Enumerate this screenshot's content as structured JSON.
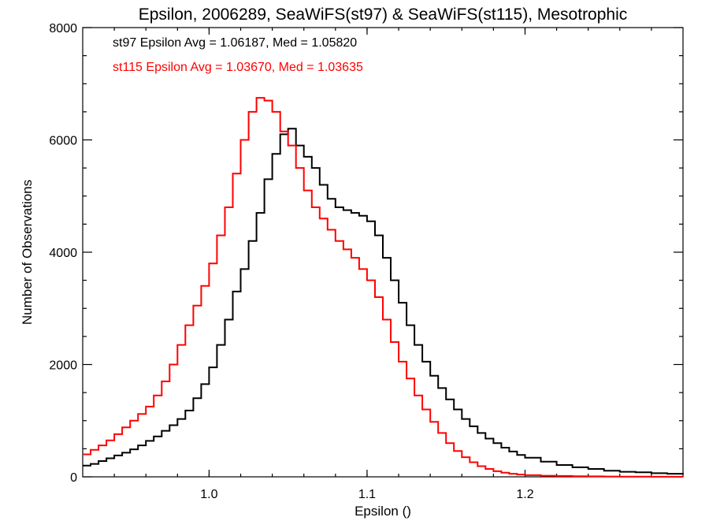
{
  "chart_data": {
    "type": "line",
    "title": "Epsilon, 2006289, SeaWiFS(st97) & SeaWiFS(st115), Mesotrophic",
    "xlabel": "Epsilon ()",
    "ylabel": "Number of Observations",
    "xlim": [
      0.92,
      1.3
    ],
    "ylim": [
      0,
      8000
    ],
    "grid": false,
    "x_ticks": [
      {
        "value": 1.0,
        "label": "1.0"
      },
      {
        "value": 1.1,
        "label": "1.1"
      },
      {
        "value": 1.2,
        "label": "1.2"
      }
    ],
    "y_ticks": [
      {
        "value": 0,
        "label": "0"
      },
      {
        "value": 2000,
        "label": "2000"
      },
      {
        "value": 4000,
        "label": "4000"
      },
      {
        "value": 6000,
        "label": "6000"
      },
      {
        "value": 8000,
        "label": "8000"
      }
    ],
    "annotations": [
      {
        "text": "st97 Epsilon Avg = 1.06187, Med = 1.05820",
        "color": "#000000"
      },
      {
        "text": "st115 Epsilon Avg = 1.03670, Med = 1.03635",
        "color": "#ff0000"
      }
    ],
    "series": [
      {
        "color": "#000000",
        "step": true,
        "points": [
          [
            0.92,
            200
          ],
          [
            0.925,
            230
          ],
          [
            0.93,
            280
          ],
          [
            0.935,
            330
          ],
          [
            0.94,
            380
          ],
          [
            0.945,
            430
          ],
          [
            0.95,
            490
          ],
          [
            0.955,
            560
          ],
          [
            0.96,
            640
          ],
          [
            0.965,
            720
          ],
          [
            0.97,
            820
          ],
          [
            0.975,
            920
          ],
          [
            0.98,
            1030
          ],
          [
            0.985,
            1180
          ],
          [
            0.99,
            1400
          ],
          [
            0.995,
            1650
          ],
          [
            1.0,
            1950
          ],
          [
            1.005,
            2350
          ],
          [
            1.01,
            2800
          ],
          [
            1.015,
            3300
          ],
          [
            1.02,
            3700
          ],
          [
            1.025,
            4200
          ],
          [
            1.03,
            4700
          ],
          [
            1.035,
            5300
          ],
          [
            1.04,
            5750
          ],
          [
            1.045,
            6100
          ],
          [
            1.05,
            6200
          ],
          [
            1.055,
            5900
          ],
          [
            1.06,
            5700
          ],
          [
            1.065,
            5500
          ],
          [
            1.07,
            5200
          ],
          [
            1.075,
            4950
          ],
          [
            1.08,
            4800
          ],
          [
            1.085,
            4750
          ],
          [
            1.09,
            4700
          ],
          [
            1.095,
            4650
          ],
          [
            1.1,
            4550
          ],
          [
            1.105,
            4300
          ],
          [
            1.11,
            3900
          ],
          [
            1.115,
            3500
          ],
          [
            1.12,
            3100
          ],
          [
            1.125,
            2700
          ],
          [
            1.13,
            2350
          ],
          [
            1.135,
            2050
          ],
          [
            1.14,
            1800
          ],
          [
            1.145,
            1580
          ],
          [
            1.15,
            1380
          ],
          [
            1.155,
            1200
          ],
          [
            1.16,
            1030
          ],
          [
            1.165,
            900
          ],
          [
            1.17,
            780
          ],
          [
            1.175,
            680
          ],
          [
            1.18,
            600
          ],
          [
            1.185,
            520
          ],
          [
            1.19,
            450
          ],
          [
            1.195,
            390
          ],
          [
            1.2,
            340
          ],
          [
            1.21,
            270
          ],
          [
            1.22,
            210
          ],
          [
            1.23,
            170
          ],
          [
            1.24,
            140
          ],
          [
            1.25,
            110
          ],
          [
            1.26,
            90
          ],
          [
            1.27,
            80
          ],
          [
            1.28,
            65
          ],
          [
            1.29,
            55
          ],
          [
            1.3,
            45
          ]
        ]
      },
      {
        "color": "#ff0000",
        "step": true,
        "points": [
          [
            0.92,
            400
          ],
          [
            0.925,
            480
          ],
          [
            0.93,
            560
          ],
          [
            0.935,
            650
          ],
          [
            0.94,
            760
          ],
          [
            0.945,
            880
          ],
          [
            0.95,
            1000
          ],
          [
            0.955,
            1120
          ],
          [
            0.96,
            1250
          ],
          [
            0.965,
            1450
          ],
          [
            0.97,
            1700
          ],
          [
            0.975,
            2000
          ],
          [
            0.98,
            2350
          ],
          [
            0.985,
            2700
          ],
          [
            0.99,
            3050
          ],
          [
            0.995,
            3400
          ],
          [
            1.0,
            3800
          ],
          [
            1.005,
            4300
          ],
          [
            1.01,
            4800
          ],
          [
            1.015,
            5400
          ],
          [
            1.02,
            6000
          ],
          [
            1.025,
            6500
          ],
          [
            1.03,
            6750
          ],
          [
            1.035,
            6700
          ],
          [
            1.04,
            6500
          ],
          [
            1.045,
            6150
          ],
          [
            1.05,
            5900
          ],
          [
            1.055,
            5500
          ],
          [
            1.06,
            5100
          ],
          [
            1.065,
            4800
          ],
          [
            1.07,
            4600
          ],
          [
            1.075,
            4400
          ],
          [
            1.08,
            4200
          ],
          [
            1.085,
            4050
          ],
          [
            1.09,
            3900
          ],
          [
            1.095,
            3700
          ],
          [
            1.1,
            3500
          ],
          [
            1.105,
            3200
          ],
          [
            1.11,
            2800
          ],
          [
            1.115,
            2400
          ],
          [
            1.12,
            2050
          ],
          [
            1.125,
            1750
          ],
          [
            1.13,
            1450
          ],
          [
            1.135,
            1200
          ],
          [
            1.14,
            980
          ],
          [
            1.145,
            780
          ],
          [
            1.15,
            600
          ],
          [
            1.155,
            460
          ],
          [
            1.16,
            350
          ],
          [
            1.165,
            260
          ],
          [
            1.17,
            190
          ],
          [
            1.175,
            140
          ],
          [
            1.18,
            100
          ],
          [
            1.185,
            75
          ],
          [
            1.19,
            55
          ],
          [
            1.195,
            40
          ],
          [
            1.2,
            30
          ],
          [
            1.21,
            20
          ],
          [
            1.22,
            15
          ],
          [
            1.23,
            10
          ],
          [
            1.24,
            8
          ],
          [
            1.25,
            5
          ],
          [
            1.26,
            4
          ],
          [
            1.27,
            3
          ],
          [
            1.28,
            2
          ],
          [
            1.29,
            2
          ],
          [
            1.3,
            1
          ]
        ]
      }
    ]
  }
}
